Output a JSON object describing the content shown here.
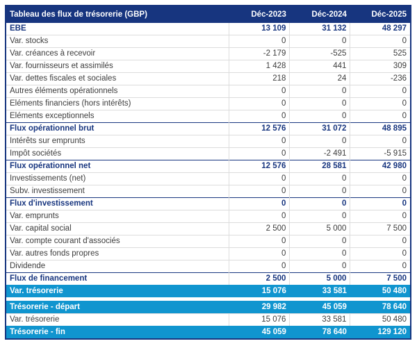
{
  "table": {
    "title": "Tableau des flux de trésorerie (GBP)",
    "columns": [
      "Déc-2023",
      "Déc-2024",
      "Déc-2025"
    ],
    "colors": {
      "header_bg": "#17357F",
      "accent_row_bg": "#1095CF",
      "bold_text": "#17357F",
      "body_text": "#3C3C3C",
      "gridline": "#DCDCDC"
    },
    "rows": [
      {
        "label": "EBE",
        "values": [
          "13 109",
          "31 132",
          "48 297"
        ],
        "style": "bold"
      },
      {
        "label": "Var. stocks",
        "values": [
          "0",
          "0",
          "0"
        ],
        "style": "plain"
      },
      {
        "label": "Var. créances à recevoir",
        "values": [
          "-2 179",
          "-525",
          "525"
        ],
        "style": "plain"
      },
      {
        "label": "Var. fournisseurs et assimilés",
        "values": [
          "1 428",
          "441",
          "309"
        ],
        "style": "plain"
      },
      {
        "label": "Var. dettes fiscales et sociales",
        "values": [
          "218",
          "24",
          "-236"
        ],
        "style": "plain"
      },
      {
        "label": "Autres éléments opérationnels",
        "values": [
          "0",
          "0",
          "0"
        ],
        "style": "plain"
      },
      {
        "label": "Eléments financiers (hors intérêts)",
        "values": [
          "0",
          "0",
          "0"
        ],
        "style": "plain"
      },
      {
        "label": "Eléments exceptionnels",
        "values": [
          "0",
          "0",
          "0"
        ],
        "style": "plain"
      },
      {
        "label": "Flux opérationnel brut",
        "values": [
          "12 576",
          "31 072",
          "48 895"
        ],
        "style": "bold"
      },
      {
        "label": "Intérêts sur emprunts",
        "values": [
          "0",
          "0",
          "0"
        ],
        "style": "plain"
      },
      {
        "label": "Impôt sociétés",
        "values": [
          "0",
          "-2 491",
          "-5 915"
        ],
        "style": "plain"
      },
      {
        "label": "Flux opérationnel net",
        "values": [
          "12 576",
          "28 581",
          "42 980"
        ],
        "style": "bold"
      },
      {
        "label": "Investissements (net)",
        "values": [
          "0",
          "0",
          "0"
        ],
        "style": "plain"
      },
      {
        "label": "Subv. investissement",
        "values": [
          "0",
          "0",
          "0"
        ],
        "style": "plain"
      },
      {
        "label": "Flux d'investissement",
        "values": [
          "0",
          "0",
          "0"
        ],
        "style": "bold"
      },
      {
        "label": "Var. emprunts",
        "values": [
          "0",
          "0",
          "0"
        ],
        "style": "plain"
      },
      {
        "label": "Var. capital social",
        "values": [
          "2 500",
          "5 000",
          "7 500"
        ],
        "style": "plain"
      },
      {
        "label": "Var. compte courant d'associés",
        "values": [
          "0",
          "0",
          "0"
        ],
        "style": "plain"
      },
      {
        "label": "Var. autres fonds propres",
        "values": [
          "0",
          "0",
          "0"
        ],
        "style": "plain"
      },
      {
        "label": "Dividende",
        "values": [
          "0",
          "0",
          "0"
        ],
        "style": "plain"
      },
      {
        "label": "Flux de financement",
        "values": [
          "2 500",
          "5 000",
          "7 500"
        ],
        "style": "bold"
      },
      {
        "label": "Var. trésorerie",
        "values": [
          "15 076",
          "33 581",
          "50 480"
        ],
        "style": "accent"
      },
      {
        "style": "spacer"
      },
      {
        "label": "Trésorerie - départ",
        "values": [
          "29 982",
          "45 059",
          "78 640"
        ],
        "style": "accent"
      },
      {
        "label": "Var. trésorerie",
        "values": [
          "15 076",
          "33 581",
          "50 480"
        ],
        "style": "plain"
      },
      {
        "label": "Trésorerie - fin",
        "values": [
          "45 059",
          "78 640",
          "129 120"
        ],
        "style": "accent"
      }
    ]
  },
  "chart_data": {
    "type": "table",
    "title": "Tableau des flux de trésorerie (GBP)",
    "columns": [
      "Déc-2023",
      "Déc-2024",
      "Déc-2025"
    ],
    "series": [
      {
        "name": "EBE",
        "values": [
          13109,
          31132,
          48297
        ],
        "emphasis": "bold"
      },
      {
        "name": "Var. stocks",
        "values": [
          0,
          0,
          0
        ]
      },
      {
        "name": "Var. créances à recevoir",
        "values": [
          -2179,
          -525,
          525
        ]
      },
      {
        "name": "Var. fournisseurs et assimilés",
        "values": [
          1428,
          441,
          309
        ]
      },
      {
        "name": "Var. dettes fiscales et sociales",
        "values": [
          218,
          24,
          -236
        ]
      },
      {
        "name": "Autres éléments opérationnels",
        "values": [
          0,
          0,
          0
        ]
      },
      {
        "name": "Eléments financiers (hors intérêts)",
        "values": [
          0,
          0,
          0
        ]
      },
      {
        "name": "Eléments exceptionnels",
        "values": [
          0,
          0,
          0
        ]
      },
      {
        "name": "Flux opérationnel brut",
        "values": [
          12576,
          31072,
          48895
        ],
        "emphasis": "bold"
      },
      {
        "name": "Intérêts sur emprunts",
        "values": [
          0,
          0,
          0
        ]
      },
      {
        "name": "Impôt sociétés",
        "values": [
          0,
          -2491,
          -5915
        ]
      },
      {
        "name": "Flux opérationnel net",
        "values": [
          12576,
          28581,
          42980
        ],
        "emphasis": "bold"
      },
      {
        "name": "Investissements (net)",
        "values": [
          0,
          0,
          0
        ]
      },
      {
        "name": "Subv. investissement",
        "values": [
          0,
          0,
          0
        ]
      },
      {
        "name": "Flux d'investissement",
        "values": [
          0,
          0,
          0
        ],
        "emphasis": "bold"
      },
      {
        "name": "Var. emprunts",
        "values": [
          0,
          0,
          0
        ]
      },
      {
        "name": "Var. capital social",
        "values": [
          2500,
          5000,
          7500
        ]
      },
      {
        "name": "Var. compte courant d'associés",
        "values": [
          0,
          0,
          0
        ]
      },
      {
        "name": "Var. autres fonds propres",
        "values": [
          0,
          0,
          0
        ]
      },
      {
        "name": "Dividende",
        "values": [
          0,
          0,
          0
        ]
      },
      {
        "name": "Flux de financement",
        "values": [
          2500,
          5000,
          7500
        ],
        "emphasis": "bold"
      },
      {
        "name": "Var. trésorerie",
        "values": [
          15076,
          33581,
          50480
        ],
        "emphasis": "highlight"
      },
      {
        "name": "Trésorerie - départ",
        "values": [
          29982,
          45059,
          78640
        ],
        "emphasis": "highlight"
      },
      {
        "name": "Var. trésorerie",
        "values": [
          15076,
          33581,
          50480
        ]
      },
      {
        "name": "Trésorerie - fin",
        "values": [
          45059,
          78640,
          129120
        ],
        "emphasis": "highlight"
      }
    ]
  }
}
